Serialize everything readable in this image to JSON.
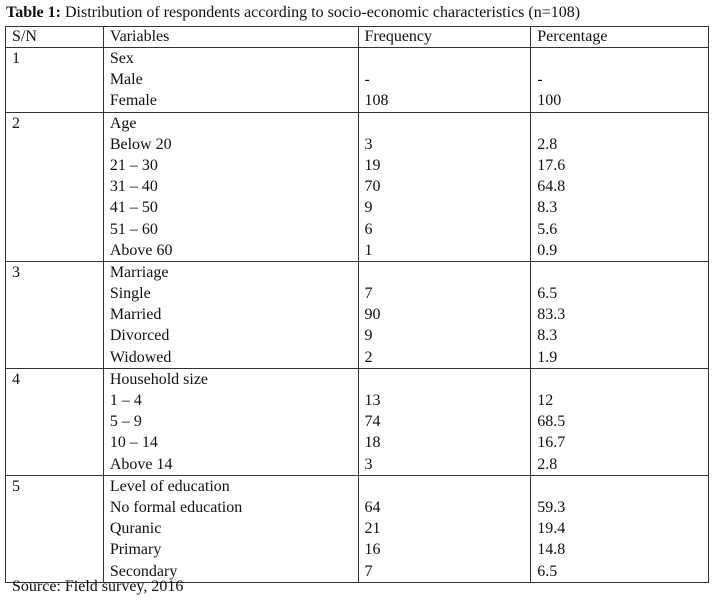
{
  "title": {
    "label": "Table 1:",
    "text": "Distribution of respondents according to socio-economic characteristics (n=108)"
  },
  "table": {
    "header": [
      "S/N",
      "Variables",
      "Frequency",
      "Percentage"
    ],
    "groups": [
      {
        "sn": "1",
        "variable": "Sex",
        "rows": [
          [
            "Male",
            "-",
            "-"
          ],
          [
            "Female",
            "108",
            "100"
          ]
        ]
      },
      {
        "sn": "2",
        "variable": "Age",
        "rows": [
          [
            "Below 20",
            "3",
            "2.8"
          ],
          [
            "21 – 30",
            "19",
            "17.6"
          ],
          [
            "31 – 40",
            "70",
            "64.8"
          ],
          [
            "41 – 50",
            "9",
            "8.3"
          ],
          [
            "51 – 60",
            "6",
            "5.6"
          ],
          [
            "Above 60",
            "1",
            "0.9"
          ]
        ]
      },
      {
        "sn": "3",
        "variable": "Marriage",
        "rows": [
          [
            "Single",
            "7",
            "6.5"
          ],
          [
            "Married",
            "90",
            "83.3"
          ],
          [
            "Divorced",
            "9",
            "8.3"
          ],
          [
            "Widowed",
            "2",
            "1.9"
          ]
        ]
      },
      {
        "sn": "4",
        "variable": "Household size",
        "rows": [
          [
            "1 – 4",
            "13",
            "12"
          ],
          [
            "5 – 9",
            "74",
            "68.5"
          ],
          [
            "10 – 14",
            "18",
            "16.7"
          ],
          [
            "Above 14",
            "3",
            "2.8"
          ]
        ]
      },
      {
        "sn": "5",
        "variable": "Level of education",
        "rows": [
          [
            "No formal education",
            "64",
            "59.3"
          ],
          [
            "Quranic",
            "21",
            "19.4"
          ],
          [
            "Primary",
            "16",
            "14.8"
          ],
          [
            "Secondary",
            "7",
            "6.5"
          ]
        ]
      }
    ]
  },
  "source": "Source: Field survey, 2016"
}
